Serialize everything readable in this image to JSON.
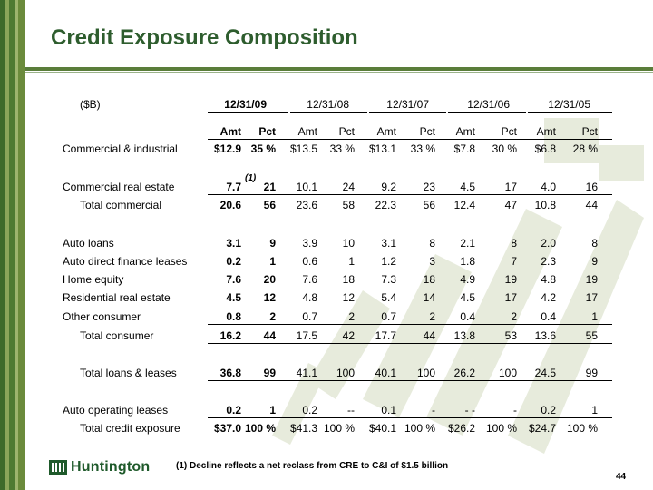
{
  "title": "Credit Exposure Composition",
  "unit_label": "($B)",
  "columns": [
    {
      "period": "12/31/09",
      "amt": "Amt",
      "pct": "Pct"
    },
    {
      "period": "12/31/08",
      "amt": "Amt",
      "pct": "Pct"
    },
    {
      "period": "12/31/07",
      "amt": "Amt",
      "pct": "Pct"
    },
    {
      "period": "12/31/06",
      "amt": "Amt",
      "pct": "Pct"
    },
    {
      "period": "12/31/05",
      "amt": "Amt",
      "pct": "Pct"
    }
  ],
  "rows": [
    {
      "label": "Commercial & industrial",
      "indent": false,
      "rule": false,
      "cells": [
        [
          "$12.9",
          "35 %"
        ],
        [
          "$13.5",
          "33 %"
        ],
        [
          "$13.1",
          "33 %"
        ],
        [
          "$7.8",
          "30 %"
        ],
        [
          "$6.8",
          "28 %"
        ]
      ]
    },
    {
      "label": "Commercial real estate",
      "indent": false,
      "rule": true,
      "cells": [
        [
          "7.7",
          "21"
        ],
        [
          "10.1",
          "24"
        ],
        [
          "9.2",
          "23"
        ],
        [
          "4.5",
          "17"
        ],
        [
          "4.0",
          "16"
        ]
      ]
    },
    {
      "label": "Total commercial",
      "indent": true,
      "rule": false,
      "cells": [
        [
          "20.6",
          "56"
        ],
        [
          "23.6",
          "58"
        ],
        [
          "22.3",
          "56"
        ],
        [
          "12.4",
          "47"
        ],
        [
          "10.8",
          "44"
        ]
      ]
    },
    {
      "label": "Auto loans",
      "indent": false,
      "rule": false,
      "cells": [
        [
          "3.1",
          "9"
        ],
        [
          "3.9",
          "10"
        ],
        [
          "3.1",
          "8"
        ],
        [
          "2.1",
          "8"
        ],
        [
          "2.0",
          "8"
        ]
      ]
    },
    {
      "label": "Auto direct finance leases",
      "indent": false,
      "rule": false,
      "cells": [
        [
          "0.2",
          "1"
        ],
        [
          "0.6",
          "1"
        ],
        [
          "1.2",
          "3"
        ],
        [
          "1.8",
          "7"
        ],
        [
          "2.3",
          "9"
        ]
      ]
    },
    {
      "label": "Home equity",
      "indent": false,
      "rule": false,
      "cells": [
        [
          "7.6",
          "20"
        ],
        [
          "7.6",
          "18"
        ],
        [
          "7.3",
          "18"
        ],
        [
          "4.9",
          "19"
        ],
        [
          "4.8",
          "19"
        ]
      ]
    },
    {
      "label": "Residential real estate",
      "indent": false,
      "rule": false,
      "cells": [
        [
          "4.5",
          "12"
        ],
        [
          "4.8",
          "12"
        ],
        [
          "5.4",
          "14"
        ],
        [
          "4.5",
          "17"
        ],
        [
          "4.2",
          "17"
        ]
      ]
    },
    {
      "label": "Other consumer",
      "indent": false,
      "rule": true,
      "cells": [
        [
          "0.8",
          "2"
        ],
        [
          "0.7",
          "2"
        ],
        [
          "0.7",
          "2"
        ],
        [
          "0.4",
          "2"
        ],
        [
          "0.4",
          "1"
        ]
      ]
    },
    {
      "label": "Total consumer",
      "indent": true,
      "rule": true,
      "cells": [
        [
          "16.2",
          "44"
        ],
        [
          "17.5",
          "42"
        ],
        [
          "17.7",
          "44"
        ],
        [
          "13.8",
          "53"
        ],
        [
          "13.6",
          "55"
        ]
      ]
    },
    {
      "label": "Total loans & leases",
      "indent": true,
      "rule": true,
      "cells": [
        [
          "36.8",
          "99"
        ],
        [
          "41.1",
          "100"
        ],
        [
          "40.1",
          "100"
        ],
        [
          "26.2",
          "100"
        ],
        [
          "24.5",
          "99"
        ]
      ]
    },
    {
      "label": "Auto operating leases",
      "indent": false,
      "rule": true,
      "cells": [
        [
          "0.2",
          "1"
        ],
        [
          "0.2",
          "--"
        ],
        [
          "0.1",
          "-"
        ],
        [
          "- -",
          "-"
        ],
        [
          "0.2",
          "1"
        ]
      ]
    },
    {
      "label": "Total credit exposure",
      "indent": true,
      "rule": false,
      "cells": [
        [
          "$37.0",
          "100 %"
        ],
        [
          "$41.3",
          "100 %"
        ],
        [
          "$40.1",
          "100 %"
        ],
        [
          "$26.2",
          "100 %"
        ],
        [
          "$24.7",
          "100 %"
        ]
      ]
    }
  ],
  "superscript": "(1)",
  "footnote": "(1)    Decline reflects a net reclass from CRE to C&I of $1.5 billion",
  "logo_text": "Huntington",
  "logo_icon": "huntington-logo-icon",
  "page_number": "44",
  "colors": {
    "title": "#2e5d2e",
    "stripe_dark": "#3d6b2a",
    "stripe_light": "#7e9b4a",
    "watermark": "#e6eadb",
    "logo": "#1f5a2b"
  }
}
